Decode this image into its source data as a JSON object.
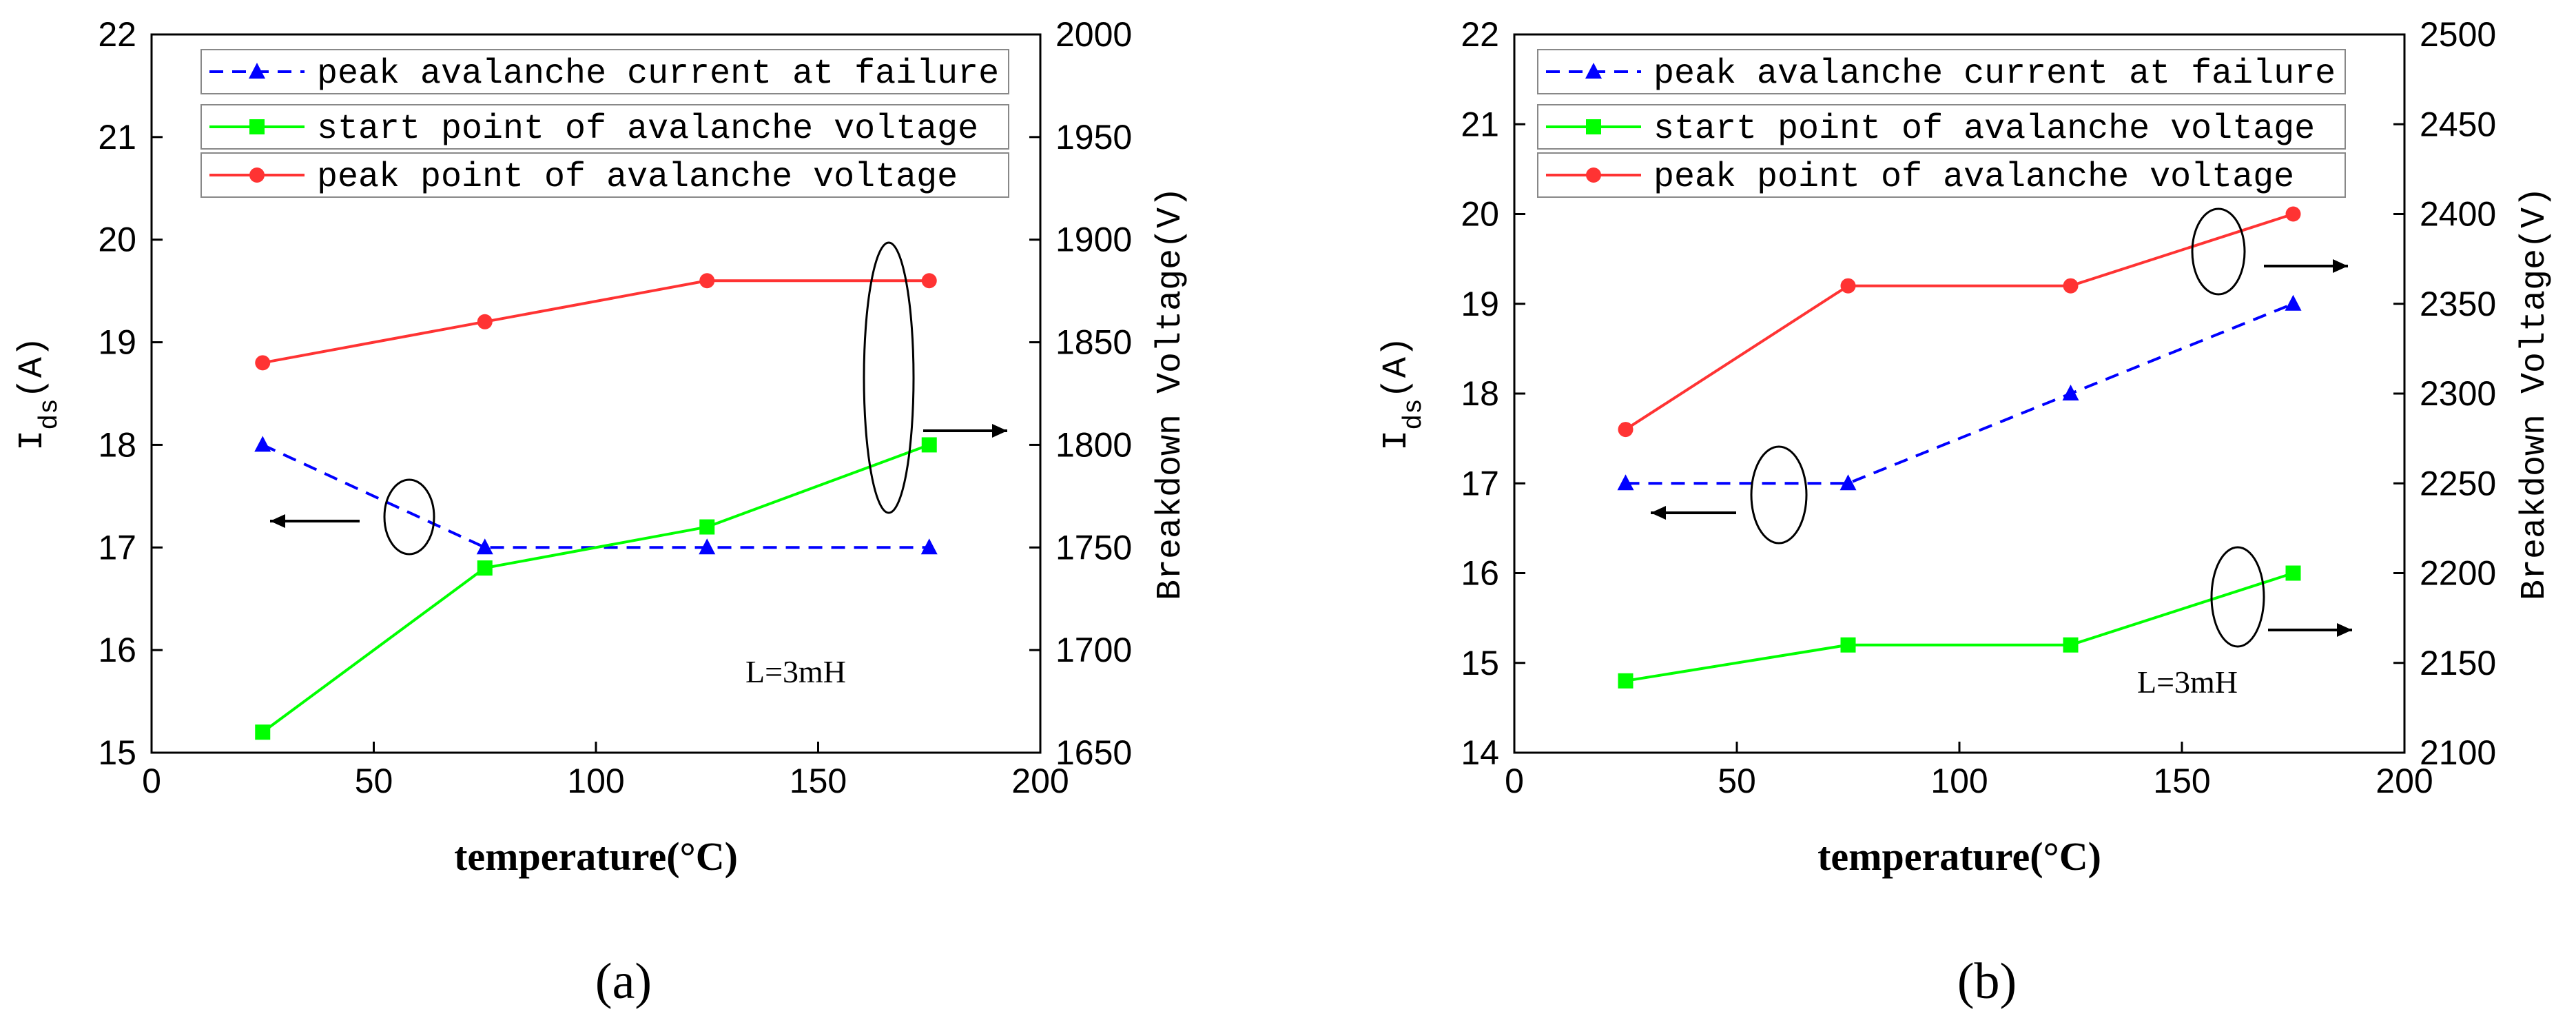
{
  "chart_data": [
    {
      "type": "line",
      "caption": "(a)",
      "x": [
        25,
        75,
        125,
        175
      ],
      "xlim": [
        0,
        200
      ],
      "xticks": [
        "0",
        "50",
        "100",
        "150",
        "200"
      ],
      "xlabel": "temperature(°C)",
      "ylabel_left": "I",
      "ylabel_left_sub": "ds",
      "ylabel_left_unit": "(A)",
      "ylim_left": [
        15,
        22
      ],
      "yticks_left": [
        "15",
        "16",
        "17",
        "18",
        "19",
        "20",
        "21",
        "22"
      ],
      "ylabel_right": "Breakdown Voltage(V)",
      "ylim_right": [
        1650,
        2000
      ],
      "yticks_right": [
        "1650",
        "1700",
        "1750",
        "1800",
        "1850",
        "1900",
        "1950",
        "2000"
      ],
      "annotation": "L=3mH",
      "series": [
        {
          "name": "peak avalanche current at failure",
          "axis": "left",
          "color": "#0000ff",
          "style": "dashed",
          "marker": "triangle",
          "values": [
            18,
            17,
            17,
            17
          ]
        },
        {
          "name": "start point of avalanche voltage",
          "axis": "right",
          "color": "#00ff00",
          "style": "solid",
          "marker": "square",
          "values": [
            1660,
            1740,
            1760,
            1800
          ]
        },
        {
          "name": "peak  point of avalanche voltage",
          "axis": "right",
          "color": "#ff3333",
          "style": "solid",
          "marker": "circle",
          "values": [
            1840,
            1860,
            1880,
            1880
          ]
        }
      ]
    },
    {
      "type": "line",
      "caption": "(b)",
      "x": [
        25,
        75,
        125,
        175
      ],
      "xlim": [
        0,
        200
      ],
      "xticks": [
        "0",
        "50",
        "100",
        "150",
        "200"
      ],
      "xlabel": "temperature(°C)",
      "ylabel_left": "I",
      "ylabel_left_sub": "ds",
      "ylabel_left_unit": "(A)",
      "ylim_left": [
        14,
        22
      ],
      "yticks_left": [
        "14",
        "15",
        "16",
        "17",
        "18",
        "19",
        "20",
        "21",
        "22"
      ],
      "ylabel_right": "Breakdown Voltage(V)",
      "ylim_right": [
        2100,
        2500
      ],
      "yticks_right": [
        "2100",
        "2150",
        "2200",
        "2250",
        "2300",
        "2350",
        "2400",
        "2450",
        "2500"
      ],
      "annotation": "L=3mH",
      "series": [
        {
          "name": "peak avalanche current at failure",
          "axis": "left",
          "color": "#0000ff",
          "style": "dashed",
          "marker": "triangle",
          "values": [
            17,
            17,
            18,
            19
          ]
        },
        {
          "name": "start point of avalanche voltage",
          "axis": "right",
          "color": "#00ff00",
          "style": "solid",
          "marker": "square",
          "values": [
            2140,
            2160,
            2160,
            2200
          ]
        },
        {
          "name": "peak  point of avalanche voltage",
          "axis": "right",
          "color": "#ff3333",
          "style": "solid",
          "marker": "circle",
          "values": [
            2280,
            2360,
            2360,
            2400
          ]
        }
      ]
    }
  ]
}
